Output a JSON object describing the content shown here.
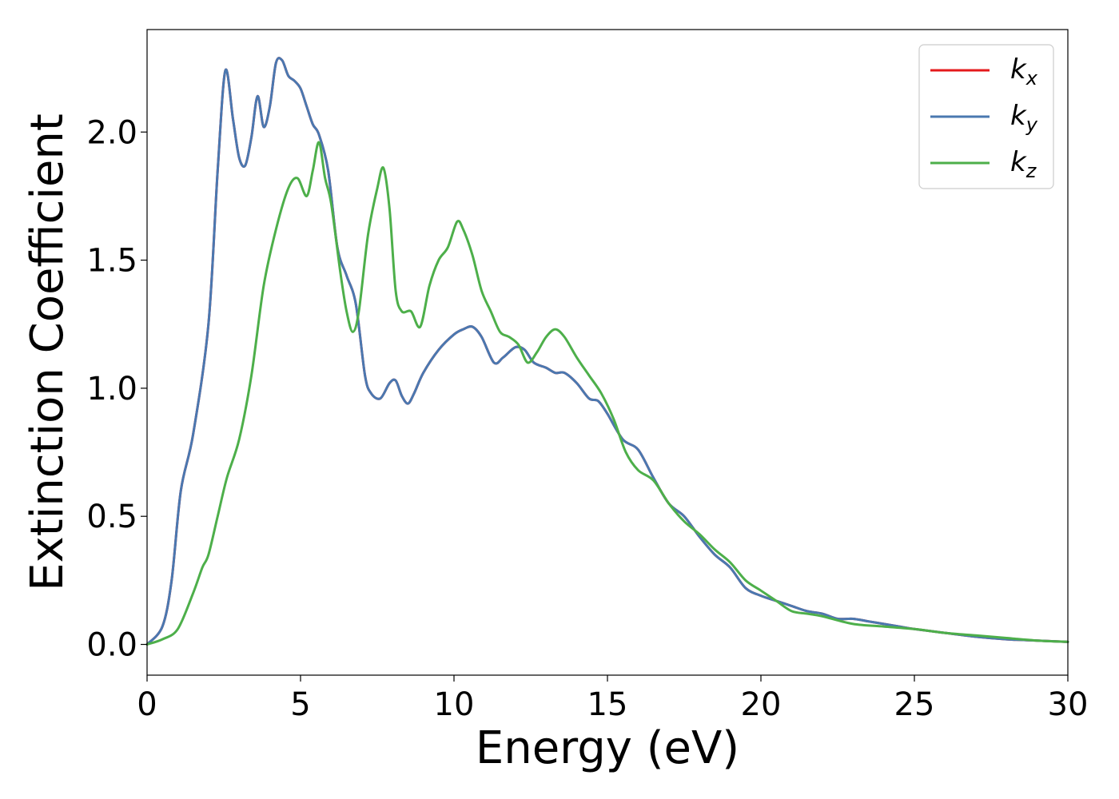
{
  "chart_data": {
    "type": "line",
    "xlabel": "Energy (eV)",
    "ylabel": "Extinction Coefficient",
    "xlim": [
      0,
      30
    ],
    "ylim": [
      -0.12,
      2.4
    ],
    "xticks": [
      0,
      5,
      10,
      15,
      20,
      25,
      30
    ],
    "xtick_labels": [
      "0",
      "5",
      "10",
      "15",
      "20",
      "25",
      "30"
    ],
    "yticks": [
      0.0,
      0.5,
      1.0,
      1.5,
      2.0
    ],
    "ytick_labels": [
      "0.0",
      "0.5",
      "1.0",
      "1.5",
      "2.0"
    ],
    "grid": false,
    "legend_position": "top-right",
    "series": [
      {
        "name": "k_x",
        "label_main": "k",
        "label_sub": "x",
        "color": "#e41a1c",
        "x": [
          0,
          0.5,
          0.8,
          1.1,
          1.5,
          2.0,
          2.3,
          2.55,
          2.8,
          3.0,
          3.2,
          3.4,
          3.6,
          3.8,
          4.0,
          4.2,
          4.4,
          4.6,
          4.8,
          5.0,
          5.2,
          5.4,
          5.6,
          5.9,
          6.2,
          6.5,
          6.8,
          7.1,
          7.3,
          7.6,
          7.9,
          8.1,
          8.3,
          8.5,
          8.7,
          9.0,
          9.5,
          10.0,
          10.3,
          10.6,
          10.9,
          11.3,
          11.6,
          12.0,
          12.3,
          12.6,
          13.0,
          13.3,
          13.6,
          14.0,
          14.4,
          14.7,
          15.0,
          15.5,
          16.0,
          16.5,
          17.0,
          17.5,
          18.0,
          18.5,
          19.0,
          19.5,
          20.0,
          20.5,
          21.0,
          21.5,
          22.0,
          22.5,
          23.0,
          23.5,
          24.0,
          24.5,
          25.0,
          26.0,
          27.0,
          28.0,
          29.0,
          30.0
        ],
        "values": [
          0.0,
          0.07,
          0.25,
          0.6,
          0.82,
          1.25,
          1.85,
          2.24,
          2.05,
          1.9,
          1.87,
          1.98,
          2.14,
          2.02,
          2.1,
          2.27,
          2.28,
          2.22,
          2.2,
          2.17,
          2.1,
          2.03,
          1.99,
          1.85,
          1.55,
          1.44,
          1.33,
          1.05,
          0.98,
          0.96,
          1.02,
          1.03,
          0.97,
          0.94,
          0.98,
          1.06,
          1.15,
          1.21,
          1.23,
          1.24,
          1.2,
          1.1,
          1.12,
          1.16,
          1.15,
          1.1,
          1.08,
          1.06,
          1.06,
          1.02,
          0.96,
          0.95,
          0.9,
          0.8,
          0.76,
          0.65,
          0.55,
          0.5,
          0.42,
          0.35,
          0.3,
          0.22,
          0.19,
          0.17,
          0.15,
          0.13,
          0.12,
          0.1,
          0.1,
          0.09,
          0.08,
          0.07,
          0.06,
          0.045,
          0.03,
          0.02,
          0.015,
          0.01
        ]
      },
      {
        "name": "k_y",
        "label_main": "k",
        "label_sub": "y",
        "color": "#4a78b0",
        "x": [
          0,
          0.5,
          0.8,
          1.1,
          1.5,
          2.0,
          2.3,
          2.55,
          2.8,
          3.0,
          3.2,
          3.4,
          3.6,
          3.8,
          4.0,
          4.2,
          4.4,
          4.6,
          4.8,
          5.0,
          5.2,
          5.4,
          5.6,
          5.9,
          6.2,
          6.5,
          6.8,
          7.1,
          7.3,
          7.6,
          7.9,
          8.1,
          8.3,
          8.5,
          8.7,
          9.0,
          9.5,
          10.0,
          10.3,
          10.6,
          10.9,
          11.3,
          11.6,
          12.0,
          12.3,
          12.6,
          13.0,
          13.3,
          13.6,
          14.0,
          14.4,
          14.7,
          15.0,
          15.5,
          16.0,
          16.5,
          17.0,
          17.5,
          18.0,
          18.5,
          19.0,
          19.5,
          20.0,
          20.5,
          21.0,
          21.5,
          22.0,
          22.5,
          23.0,
          23.5,
          24.0,
          24.5,
          25.0,
          26.0,
          27.0,
          28.0,
          29.0,
          30.0
        ],
        "values": [
          0.0,
          0.07,
          0.25,
          0.6,
          0.82,
          1.25,
          1.85,
          2.24,
          2.05,
          1.9,
          1.87,
          1.98,
          2.14,
          2.02,
          2.1,
          2.27,
          2.28,
          2.22,
          2.2,
          2.17,
          2.1,
          2.03,
          1.99,
          1.85,
          1.55,
          1.44,
          1.33,
          1.05,
          0.98,
          0.96,
          1.02,
          1.03,
          0.97,
          0.94,
          0.98,
          1.06,
          1.15,
          1.21,
          1.23,
          1.24,
          1.2,
          1.1,
          1.12,
          1.16,
          1.15,
          1.1,
          1.08,
          1.06,
          1.06,
          1.02,
          0.96,
          0.95,
          0.9,
          0.8,
          0.76,
          0.65,
          0.55,
          0.5,
          0.42,
          0.35,
          0.3,
          0.22,
          0.19,
          0.17,
          0.15,
          0.13,
          0.12,
          0.1,
          0.1,
          0.09,
          0.08,
          0.07,
          0.06,
          0.045,
          0.03,
          0.02,
          0.015,
          0.01
        ]
      },
      {
        "name": "k_z",
        "label_main": "k",
        "label_sub": "z",
        "color": "#4daf4a",
        "x": [
          0,
          0.5,
          1.0,
          1.5,
          1.8,
          2.0,
          2.3,
          2.6,
          3.0,
          3.4,
          3.8,
          4.2,
          4.6,
          4.9,
          5.2,
          5.4,
          5.6,
          5.8,
          6.0,
          6.3,
          6.5,
          6.7,
          6.9,
          7.2,
          7.5,
          7.7,
          7.9,
          8.1,
          8.3,
          8.6,
          8.9,
          9.2,
          9.5,
          9.8,
          10.1,
          10.3,
          10.6,
          10.9,
          11.2,
          11.5,
          11.8,
          12.1,
          12.4,
          12.7,
          13.0,
          13.3,
          13.6,
          14.0,
          14.4,
          14.8,
          15.2,
          15.6,
          16.0,
          16.5,
          17.0,
          17.5,
          18.0,
          18.5,
          19.0,
          19.5,
          20.0,
          20.5,
          21.0,
          21.5,
          22.0,
          23.0,
          24.0,
          25.0,
          26.0,
          27.0,
          28.0,
          29.0,
          30.0
        ],
        "values": [
          0.0,
          0.02,
          0.06,
          0.2,
          0.3,
          0.35,
          0.5,
          0.65,
          0.8,
          1.05,
          1.4,
          1.62,
          1.78,
          1.82,
          1.75,
          1.85,
          1.96,
          1.82,
          1.72,
          1.45,
          1.3,
          1.22,
          1.3,
          1.6,
          1.78,
          1.86,
          1.7,
          1.38,
          1.3,
          1.3,
          1.24,
          1.4,
          1.5,
          1.55,
          1.65,
          1.62,
          1.52,
          1.38,
          1.3,
          1.22,
          1.2,
          1.17,
          1.1,
          1.14,
          1.2,
          1.23,
          1.2,
          1.12,
          1.05,
          0.98,
          0.88,
          0.75,
          0.68,
          0.64,
          0.55,
          0.48,
          0.43,
          0.37,
          0.32,
          0.25,
          0.21,
          0.17,
          0.13,
          0.12,
          0.11,
          0.08,
          0.07,
          0.06,
          0.045,
          0.035,
          0.025,
          0.015,
          0.01
        ]
      }
    ]
  }
}
